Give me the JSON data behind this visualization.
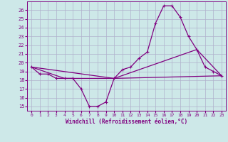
{
  "xlabel": "Windchill (Refroidissement éolien,°C)",
  "background_color": "#cde8e8",
  "line_color": "#800080",
  "grid_color": "#b0b0cc",
  "xlim": [
    -0.5,
    23.5
  ],
  "ylim": [
    14.5,
    27.0
  ],
  "xticks": [
    0,
    1,
    2,
    3,
    4,
    5,
    6,
    7,
    8,
    9,
    10,
    11,
    12,
    13,
    14,
    15,
    16,
    17,
    18,
    19,
    20,
    21,
    22,
    23
  ],
  "yticks": [
    15,
    16,
    17,
    18,
    19,
    20,
    21,
    22,
    23,
    24,
    25,
    26
  ],
  "line1_x": [
    0,
    1,
    2,
    3,
    4,
    5,
    6,
    7,
    8,
    9,
    10,
    11,
    12,
    13,
    14,
    15,
    16,
    17,
    18,
    19,
    20,
    21,
    22,
    23
  ],
  "line1_y": [
    19.5,
    18.7,
    18.7,
    18.2,
    18.2,
    18.2,
    17.0,
    15.0,
    15.0,
    15.5,
    18.2,
    19.2,
    19.5,
    20.5,
    21.2,
    24.5,
    26.5,
    26.5,
    25.2,
    23.0,
    21.5,
    19.5,
    19.0,
    18.5
  ],
  "line2_x": [
    0,
    4,
    10,
    23
  ],
  "line2_y": [
    19.5,
    18.2,
    18.2,
    18.5
  ],
  "line3_x": [
    0,
    10,
    20,
    23
  ],
  "line3_y": [
    19.5,
    18.2,
    21.5,
    18.5
  ]
}
